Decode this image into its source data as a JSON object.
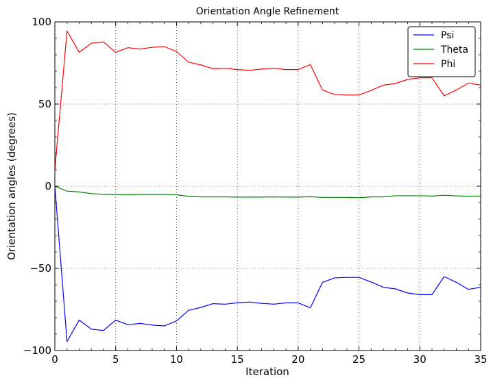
{
  "chart_data": {
    "type": "line",
    "title": "Orientation Angle Refinement",
    "xlabel": "Iteration",
    "ylabel": "Orientation angles (degrees)",
    "xlim": [
      0,
      35
    ],
    "ylim": [
      -100,
      100
    ],
    "xticks": [
      0,
      5,
      10,
      15,
      20,
      25,
      30,
      35
    ],
    "yticks": [
      -100,
      -50,
      0,
      50,
      100
    ],
    "ytick_labels": [
      "−100",
      "−50",
      "0",
      "50",
      "100"
    ],
    "grid": true,
    "legend_position": "top-right",
    "x": [
      0,
      1,
      2,
      3,
      4,
      5,
      6,
      7,
      8,
      9,
      10,
      11,
      12,
      13,
      14,
      15,
      16,
      17,
      18,
      19,
      20,
      21,
      22,
      23,
      24,
      25,
      26,
      27,
      28,
      29,
      30,
      31,
      32,
      33,
      34,
      35
    ],
    "series": [
      {
        "name": "Psi",
        "color": "#0000ff",
        "values": [
          0,
          -94.5,
          -81.5,
          -87,
          -87.8,
          -81.5,
          -84.3,
          -83.5,
          -84.5,
          -85,
          -82,
          -75.5,
          -73.8,
          -71.5,
          -71.8,
          -71,
          -70.5,
          -71.3,
          -71.8,
          -71,
          -71,
          -74,
          -58.5,
          -55.8,
          -55.5,
          -55.5,
          -58.3,
          -61.5,
          -62.5,
          -65,
          -66,
          -66,
          -55,
          -58.5,
          -62.8,
          -61.5
        ]
      },
      {
        "name": "Theta",
        "color": "#008000",
        "values": [
          0,
          -3,
          -3.5,
          -4.5,
          -5,
          -5,
          -5.2,
          -5,
          -5,
          -5,
          -5.2,
          -6.2,
          -6.5,
          -6.5,
          -6.5,
          -6.6,
          -6.6,
          -6.6,
          -6.5,
          -6.6,
          -6.6,
          -6.4,
          -6.8,
          -6.8,
          -6.8,
          -7,
          -6.5,
          -6.5,
          -5.8,
          -5.8,
          -5.8,
          -6,
          -5.5,
          -5.9,
          -6.1,
          -6
        ]
      },
      {
        "name": "Phi",
        "color": "#ff0000",
        "values": [
          10,
          94.5,
          81.5,
          87,
          87.8,
          81.5,
          84.3,
          83.5,
          84.5,
          85,
          82,
          75.5,
          73.8,
          71.5,
          71.8,
          71,
          70.5,
          71.3,
          71.8,
          71,
          71,
          74,
          58.5,
          55.8,
          55.5,
          55.5,
          58.3,
          61.5,
          62.5,
          65,
          66,
          66,
          55,
          58.5,
          62.8,
          61.5
        ]
      }
    ]
  }
}
